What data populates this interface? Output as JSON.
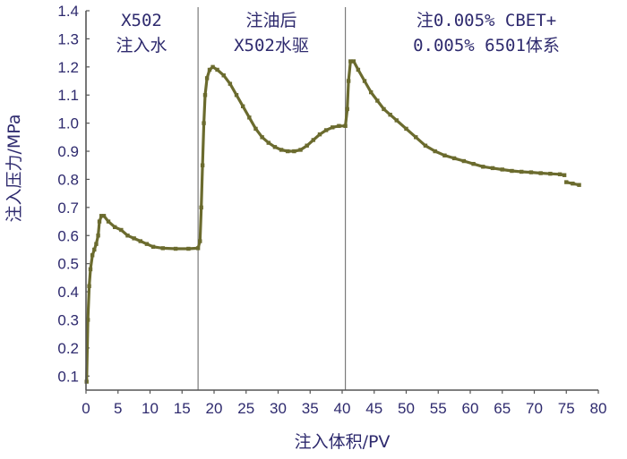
{
  "chart_data": {
    "type": "line",
    "xlabel": "注入体积/PV",
    "ylabel": "注入压力/MPa",
    "xlim": [
      0,
      80
    ],
    "ylim": [
      0.05,
      1.4
    ],
    "xticks": [
      "0",
      "5",
      "10",
      "15",
      "20",
      "25",
      "30",
      "35",
      "40",
      "45",
      "50",
      "55",
      "60",
      "65",
      "70",
      "75",
      "80"
    ],
    "yticks": [
      "0.1",
      "0.2",
      "0.3",
      "0.4",
      "0.5",
      "0.6",
      "0.7",
      "0.8",
      "0.9",
      "1.0",
      "1.1",
      "1.2",
      "1.3",
      "1.4"
    ],
    "grid": false,
    "line_color": "#6b6b2e",
    "text_color": "#2e2a6e",
    "phase_dividers": [
      17.5,
      40.5
    ],
    "phases": [
      {
        "line1": "X502",
        "line2": "注入水"
      },
      {
        "line1": "注油后",
        "line2": "X502水驱"
      },
      {
        "line1": "注0.005% CBET+",
        "line2": "0.005% 6501体系"
      }
    ],
    "series": [
      {
        "segments": [
          [
            [
              0.1,
              0.08
            ],
            [
              0.3,
              0.3
            ],
            [
              0.5,
              0.42
            ],
            [
              0.7,
              0.48
            ],
            [
              1.0,
              0.53
            ],
            [
              1.3,
              0.55
            ],
            [
              1.6,
              0.57
            ],
            [
              1.9,
              0.6
            ],
            [
              2.1,
              0.65
            ],
            [
              2.4,
              0.67
            ],
            [
              2.8,
              0.67
            ],
            [
              3.5,
              0.65
            ],
            [
              4.5,
              0.63
            ],
            [
              5.5,
              0.62
            ],
            [
              6.5,
              0.6
            ],
            [
              7.5,
              0.59
            ],
            [
              8.5,
              0.58
            ],
            [
              9.5,
              0.57
            ],
            [
              10.5,
              0.56
            ],
            [
              12,
              0.555
            ],
            [
              14,
              0.553
            ],
            [
              16,
              0.553
            ],
            [
              17.5,
              0.555
            ],
            [
              17.8,
              0.58
            ],
            [
              18.0,
              0.7
            ],
            [
              18.2,
              0.85
            ],
            [
              18.4,
              1.0
            ],
            [
              18.6,
              1.1
            ],
            [
              18.9,
              1.16
            ],
            [
              19.3,
              1.19
            ],
            [
              19.8,
              1.2
            ],
            [
              20.5,
              1.19
            ],
            [
              21.5,
              1.17
            ],
            [
              22.5,
              1.14
            ],
            [
              23.5,
              1.1
            ],
            [
              24.5,
              1.06
            ],
            [
              25.5,
              1.02
            ],
            [
              26.5,
              0.98
            ],
            [
              27.5,
              0.95
            ],
            [
              28.5,
              0.93
            ],
            [
              29.5,
              0.915
            ],
            [
              30.5,
              0.905
            ],
            [
              31.5,
              0.9
            ],
            [
              32.5,
              0.9
            ],
            [
              33.5,
              0.905
            ],
            [
              34.5,
              0.92
            ],
            [
              35.5,
              0.94
            ],
            [
              36.5,
              0.96
            ],
            [
              37.5,
              0.975
            ],
            [
              38.5,
              0.985
            ],
            [
              39.5,
              0.99
            ],
            [
              40.5,
              0.99
            ],
            [
              40.8,
              1.05
            ],
            [
              41.0,
              1.15
            ],
            [
              41.3,
              1.22
            ],
            [
              41.8,
              1.22
            ],
            [
              42.5,
              1.19
            ],
            [
              43.5,
              1.15
            ],
            [
              44.5,
              1.11
            ],
            [
              45.5,
              1.08
            ],
            [
              46.5,
              1.05
            ],
            [
              47.5,
              1.03
            ],
            [
              48.5,
              1.01
            ],
            [
              50,
              0.98
            ],
            [
              51.5,
              0.95
            ],
            [
              53,
              0.92
            ],
            [
              54.5,
              0.9
            ],
            [
              56,
              0.885
            ],
            [
              57.5,
              0.875
            ],
            [
              59,
              0.865
            ],
            [
              60.5,
              0.855
            ],
            [
              62,
              0.845
            ],
            [
              63.5,
              0.84
            ],
            [
              65,
              0.835
            ],
            [
              66.5,
              0.83
            ],
            [
              68,
              0.827
            ],
            [
              69.5,
              0.825
            ],
            [
              71,
              0.822
            ],
            [
              72.5,
              0.82
            ],
            [
              74,
              0.818
            ],
            [
              74.7,
              0.815
            ]
          ],
          [
            [
              75.0,
              0.79
            ],
            [
              76,
              0.785
            ],
            [
              77,
              0.78
            ]
          ]
        ]
      }
    ]
  }
}
